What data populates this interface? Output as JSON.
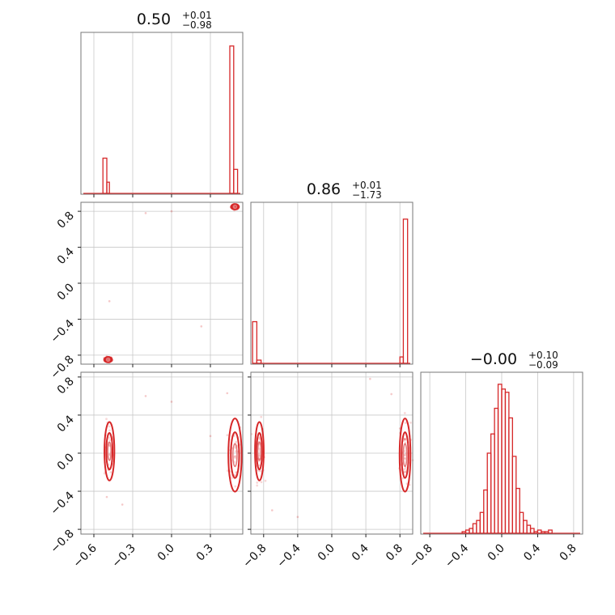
{
  "chart_data": [
    {
      "type": "histogram",
      "panel": "diag-1",
      "title": {
        "value": "0.50",
        "plus": "+0.01",
        "minus": "−0.98"
      },
      "xlim": [
        -0.7,
        0.55
      ],
      "bins": [
        {
          "x0": -0.53,
          "x1": -0.5,
          "h": 0.22
        },
        {
          "x0": -0.5,
          "x1": -0.48,
          "h": 0.07
        },
        {
          "x0": 0.45,
          "x1": 0.48,
          "h": 0.92
        },
        {
          "x0": 0.48,
          "x1": 0.51,
          "h": 0.15
        }
      ],
      "xticks": [
        -0.6,
        -0.3,
        0.0,
        0.3
      ]
    },
    {
      "type": "scatter",
      "panel": "row2-col1",
      "xlim": [
        -0.7,
        0.55
      ],
      "ylim": [
        -0.9,
        0.9
      ],
      "yticks": [
        -0.8,
        -0.4,
        0.0,
        0.4,
        0.8
      ],
      "ytick_labels": [
        "−0.8",
        "−0.4",
        "0.0",
        "0.4",
        "0.8"
      ],
      "clusters": [
        {
          "cx": 0.49,
          "cy": 0.85,
          "sx": 0.012,
          "sy": 0.012
        },
        {
          "cx": -0.49,
          "cy": -0.85,
          "sx": 0.012,
          "sy": 0.012
        }
      ],
      "outliers": [
        [
          -0.2,
          0.78
        ],
        [
          0.0,
          0.8
        ],
        [
          -0.48,
          -0.2
        ],
        [
          0.23,
          -0.48
        ]
      ]
    },
    {
      "type": "histogram",
      "panel": "diag-2",
      "title": {
        "value": "0.86",
        "plus": "+0.01",
        "minus": "−1.73"
      },
      "xlim": [
        -0.95,
        0.95
      ],
      "bins": [
        {
          "x0": -0.93,
          "x1": -0.88,
          "h": 0.26
        },
        {
          "x0": -0.88,
          "x1": -0.83,
          "h": 0.02
        },
        {
          "x0": 0.8,
          "x1": 0.84,
          "h": 0.04
        },
        {
          "x0": 0.84,
          "x1": 0.89,
          "h": 0.9
        }
      ]
    },
    {
      "type": "scatter",
      "panel": "row3-col1",
      "xlim": [
        -0.7,
        0.55
      ],
      "ylim": [
        -0.85,
        0.85
      ],
      "xticks": [
        -0.6,
        -0.3,
        0.0,
        0.3
      ],
      "xtick_labels": [
        "−0.6",
        "−0.3",
        "0.0",
        "0.3"
      ],
      "yticks": [
        -0.8,
        -0.4,
        0.0,
        0.4,
        0.8
      ],
      "ytick_labels": [
        "−0.8",
        "−0.4",
        "0.0",
        "0.4",
        "0.8"
      ],
      "clusters": [
        {
          "cx": -0.48,
          "cy": 0.02,
          "sx": 0.015,
          "sy": 0.12
        },
        {
          "cx": 0.49,
          "cy": -0.02,
          "sx": 0.02,
          "sy": 0.15
        }
      ],
      "outliers": [
        [
          -0.2,
          0.6
        ],
        [
          0.0,
          0.54
        ],
        [
          -0.5,
          -0.46
        ],
        [
          -0.38,
          -0.54
        ],
        [
          0.43,
          0.63
        ],
        [
          0.3,
          0.18
        ]
      ]
    },
    {
      "type": "scatter",
      "panel": "row3-col2",
      "xlim": [
        -0.95,
        0.95
      ],
      "ylim": [
        -0.85,
        0.85
      ],
      "xticks": [
        -0.8,
        -0.4,
        0.0,
        0.4,
        0.8
      ],
      "xtick_labels": [
        "−0.8",
        "−0.4",
        "0.0",
        "0.4",
        "0.8"
      ],
      "clusters": [
        {
          "cx": -0.85,
          "cy": 0.02,
          "sx": 0.02,
          "sy": 0.12
        },
        {
          "cx": 0.86,
          "cy": -0.02,
          "sx": 0.025,
          "sy": 0.15
        }
      ],
      "outliers": [
        [
          -0.7,
          -0.6
        ],
        [
          -0.4,
          -0.67
        ],
        [
          0.45,
          0.78
        ],
        [
          0.7,
          0.62
        ],
        [
          0.8,
          0.26
        ]
      ]
    },
    {
      "type": "histogram",
      "panel": "diag-3",
      "title": {
        "value": "−0.00",
        "plus": "+0.10",
        "minus": "−0.09"
      },
      "xlim": [
        -0.9,
        0.9
      ],
      "xticks": [
        -0.8,
        -0.4,
        0.0,
        0.4,
        0.8
      ],
      "xtick_labels": [
        "−0.8",
        "−0.4",
        "0.0",
        "0.4",
        "0.8"
      ],
      "bins": [
        {
          "x0": -0.44,
          "x1": -0.4,
          "h": 0.01
        },
        {
          "x0": -0.4,
          "x1": -0.36,
          "h": 0.02
        },
        {
          "x0": -0.36,
          "x1": -0.32,
          "h": 0.03
        },
        {
          "x0": -0.32,
          "x1": -0.28,
          "h": 0.06
        },
        {
          "x0": -0.28,
          "x1": -0.24,
          "h": 0.08
        },
        {
          "x0": -0.24,
          "x1": -0.2,
          "h": 0.13
        },
        {
          "x0": -0.2,
          "x1": -0.16,
          "h": 0.27
        },
        {
          "x0": -0.16,
          "x1": -0.12,
          "h": 0.5
        },
        {
          "x0": -0.12,
          "x1": -0.08,
          "h": 0.62
        },
        {
          "x0": -0.08,
          "x1": -0.04,
          "h": 0.78
        },
        {
          "x0": -0.04,
          "x1": 0.0,
          "h": 0.93
        },
        {
          "x0": 0.0,
          "x1": 0.04,
          "h": 0.9
        },
        {
          "x0": 0.04,
          "x1": 0.08,
          "h": 0.88
        },
        {
          "x0": 0.08,
          "x1": 0.12,
          "h": 0.72
        },
        {
          "x0": 0.12,
          "x1": 0.16,
          "h": 0.48
        },
        {
          "x0": 0.16,
          "x1": 0.2,
          "h": 0.28
        },
        {
          "x0": 0.2,
          "x1": 0.24,
          "h": 0.13
        },
        {
          "x0": 0.24,
          "x1": 0.28,
          "h": 0.08
        },
        {
          "x0": 0.28,
          "x1": 0.32,
          "h": 0.05
        },
        {
          "x0": 0.32,
          "x1": 0.36,
          "h": 0.03
        },
        {
          "x0": 0.36,
          "x1": 0.4,
          "h": 0.01
        },
        {
          "x0": 0.4,
          "x1": 0.44,
          "h": 0.02
        },
        {
          "x0": 0.44,
          "x1": 0.48,
          "h": 0.01
        },
        {
          "x0": 0.48,
          "x1": 0.52,
          "h": 0.01
        },
        {
          "x0": 0.52,
          "x1": 0.56,
          "h": 0.02
        }
      ]
    }
  ],
  "colors": {
    "series": "#d62728",
    "grid": "#c8c8c8",
    "frame": "#777777"
  }
}
